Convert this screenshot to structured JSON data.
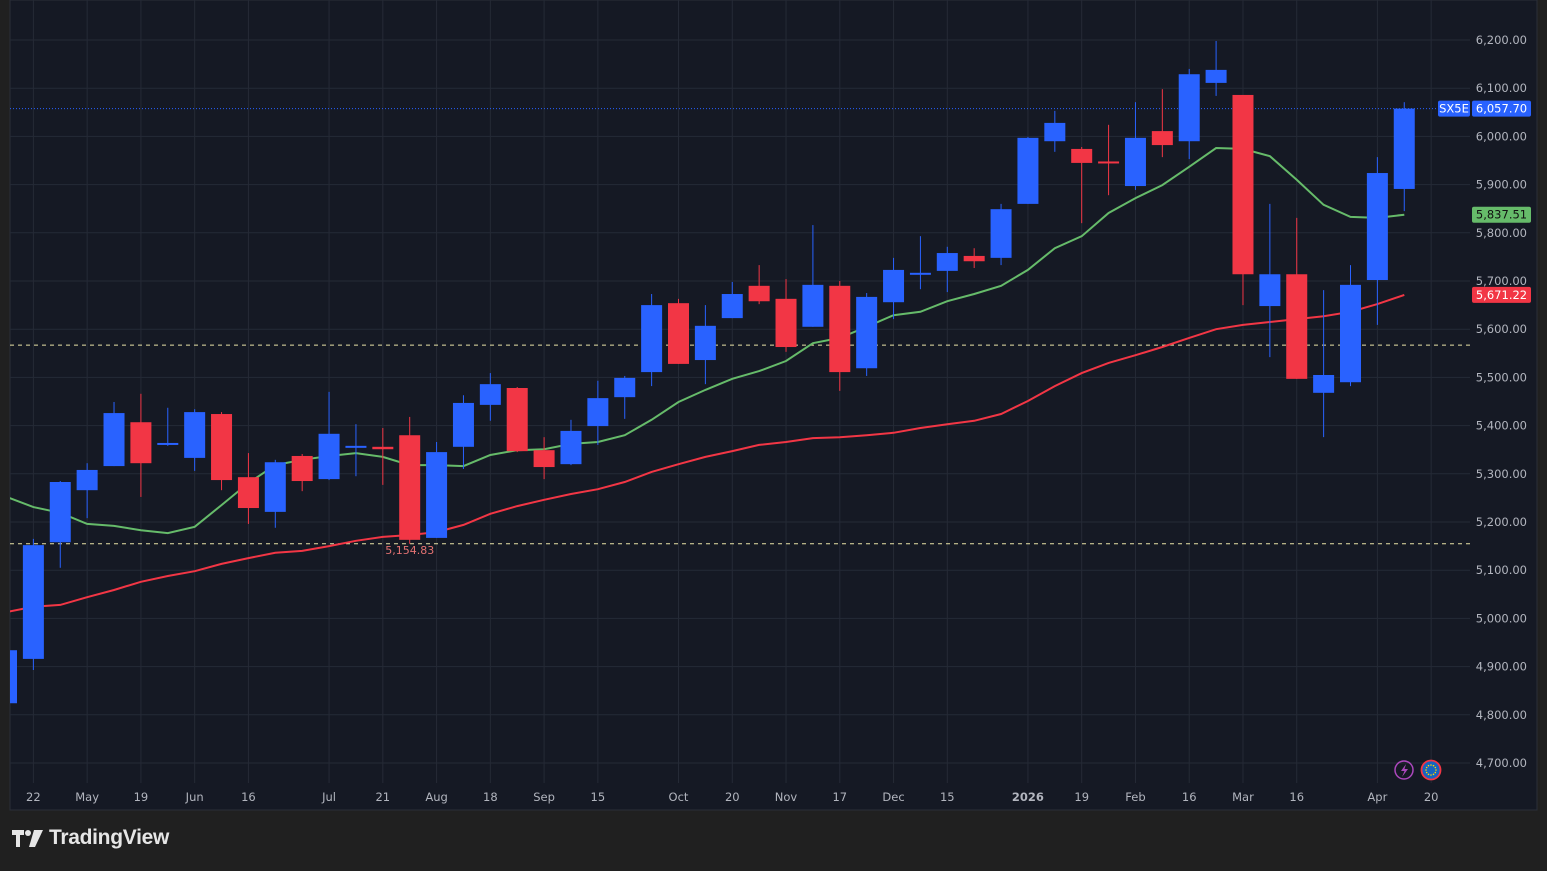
{
  "brand": {
    "name": "TradingView"
  },
  "colors": {
    "up": "#2962ff",
    "down": "#f23645",
    "ma_fast": "#66bb6a",
    "ma_slow": "#f23645",
    "grid": "#252a36",
    "background": "#151924",
    "text": "#b2b5be",
    "hline": "#e9e3a6"
  },
  "chart_data": {
    "type": "candlestick",
    "symbol": "SX5E",
    "interval": "weekly",
    "ylim": [
      4650,
      6250
    ],
    "y_ticks": [
      4700,
      4800,
      4900,
      5000,
      5100,
      5200,
      5300,
      5400,
      5500,
      5600,
      5700,
      5800,
      5900,
      6000,
      6100,
      6200
    ],
    "y_tick_labels": [
      "4,700.00",
      "4,800.00",
      "4,900.00",
      "5,000.00",
      "5,100.00",
      "5,200.00",
      "5,300.00",
      "5,400.00",
      "5,500.00",
      "5,600.00",
      "5,700.00",
      "5,800.00",
      "5,900.00",
      "6,000.00",
      "6,100.00",
      "6,200.00"
    ],
    "x_ticks": [
      {
        "index": 1,
        "label": "22"
      },
      {
        "index": 3,
        "label": "May"
      },
      {
        "index": 5,
        "label": "19"
      },
      {
        "index": 7,
        "label": "Jun"
      },
      {
        "index": 9,
        "label": "16"
      },
      {
        "index": 12,
        "label": "Jul"
      },
      {
        "index": 14,
        "label": "21"
      },
      {
        "index": 16,
        "label": "Aug"
      },
      {
        "index": 18,
        "label": "18"
      },
      {
        "index": 20,
        "label": "Sep"
      },
      {
        "index": 22,
        "label": "15"
      },
      {
        "index": 25,
        "label": "Oct"
      },
      {
        "index": 27,
        "label": "20"
      },
      {
        "index": 29,
        "label": "Nov"
      },
      {
        "index": 31,
        "label": "17"
      },
      {
        "index": 33,
        "label": "Dec"
      },
      {
        "index": 35,
        "label": "15"
      },
      {
        "index": 38,
        "label": "2026"
      },
      {
        "index": 40,
        "label": "19"
      },
      {
        "index": 42,
        "label": "Feb"
      },
      {
        "index": 44,
        "label": "16"
      },
      {
        "index": 46,
        "label": "Mar"
      },
      {
        "index": 48,
        "label": "16"
      },
      {
        "index": 51,
        "label": "Apr"
      },
      {
        "index": 53,
        "label": "20"
      }
    ],
    "ohlc": [
      [
        4824,
        4934,
        4824,
        4934
      ],
      [
        4916,
        5165,
        4893,
        5152
      ],
      [
        5158,
        5285,
        5105,
        5283
      ],
      [
        5266,
        5322,
        5208,
        5308
      ],
      [
        5316,
        5449,
        5316,
        5426
      ],
      [
        5407,
        5466,
        5252,
        5322
      ],
      [
        5362,
        5437,
        5358,
        5364
      ],
      [
        5333,
        5434,
        5306,
        5428
      ],
      [
        5424,
        5428,
        5266,
        5287
      ],
      [
        5293,
        5343,
        5196,
        5229
      ],
      [
        5221,
        5329,
        5188,
        5324
      ],
      [
        5337,
        5341,
        5264,
        5285
      ],
      [
        5289,
        5470,
        5287,
        5383
      ],
      [
        5357,
        5403,
        5295,
        5358
      ],
      [
        5356,
        5395,
        5277,
        5351
      ],
      [
        5380,
        5418,
        5154.83,
        5163
      ],
      [
        5167,
        5366,
        5167,
        5345
      ],
      [
        5356,
        5463,
        5310,
        5447
      ],
      [
        5443,
        5509,
        5410,
        5486
      ],
      [
        5478,
        5480,
        5345,
        5347
      ],
      [
        5349,
        5376,
        5289,
        5314
      ],
      [
        5320,
        5412,
        5318,
        5389
      ],
      [
        5399,
        5493,
        5360,
        5457
      ],
      [
        5459,
        5503,
        5414,
        5499
      ],
      [
        5511,
        5673,
        5482,
        5650
      ],
      [
        5654,
        5663,
        5528,
        5528
      ],
      [
        5536,
        5650,
        5486,
        5607
      ],
      [
        5623,
        5698,
        5623,
        5673
      ],
      [
        5690,
        5733,
        5652,
        5658
      ],
      [
        5663,
        5704,
        5553,
        5563
      ],
      [
        5605,
        5816,
        5605,
        5692
      ],
      [
        5690,
        5700,
        5472,
        5511
      ],
      [
        5519,
        5675,
        5503,
        5667
      ],
      [
        5656,
        5748,
        5621,
        5723
      ],
      [
        5716,
        5793,
        5683,
        5717
      ],
      [
        5721,
        5771,
        5677,
        5758
      ],
      [
        5752,
        5768,
        5727,
        5741
      ],
      [
        5748,
        5860,
        5733,
        5849
      ],
      [
        5860,
        5999,
        5860,
        5997
      ],
      [
        5990,
        6053,
        5968,
        6028
      ],
      [
        5974,
        5978,
        5820,
        5945
      ],
      [
        5948,
        6024,
        5878,
        5947
      ],
      [
        5897,
        6071,
        5889,
        5997
      ],
      [
        6011,
        6098,
        5957,
        5982
      ],
      [
        5990,
        6140,
        5953,
        6129
      ],
      [
        6111,
        6198,
        6084,
        6138
      ],
      [
        6086,
        6086,
        5650,
        5714
      ],
      [
        5648,
        5860,
        5542,
        5714
      ],
      [
        5714,
        5831,
        5497,
        5497
      ],
      [
        5468,
        5681,
        5376,
        5505
      ],
      [
        5490,
        5733,
        5482,
        5692
      ],
      [
        5702,
        5957,
        5609,
        5924
      ],
      [
        5891,
        6071,
        5845,
        6057.7
      ]
    ],
    "series": [
      {
        "name": "MA fast",
        "color": "#66bb6a",
        "last_label": "5,837.51",
        "values": [
          5252,
          5231,
          5219,
          5196,
          5192,
          5183,
          5177,
          5190,
          5235,
          5281,
          5318,
          5329,
          5337,
          5343,
          5335,
          5318,
          5318,
          5316,
          5339,
          5349,
          5351,
          5362,
          5366,
          5380,
          5412,
          5449,
          5474,
          5497,
          5513,
          5534,
          5571,
          5582,
          5605,
          5629,
          5636,
          5658,
          5673,
          5690,
          5723,
          5768,
          5793,
          5841,
          5872,
          5899,
          5937,
          5976,
          5974,
          5959,
          5910,
          5858,
          5833,
          5831,
          5837.51
        ]
      },
      {
        "name": "MA slow",
        "color": "#f23645",
        "last_label": "5,671.22",
        "values": [
          5013,
          5024,
          5028,
          5044,
          5059,
          5076,
          5088,
          5098,
          5113,
          5125,
          5136,
          5140,
          5150,
          5161,
          5169,
          5173,
          5179,
          5194,
          5217,
          5233,
          5246,
          5258,
          5268,
          5283,
          5304,
          5320,
          5335,
          5347,
          5360,
          5366,
          5374,
          5376,
          5380,
          5385,
          5395,
          5403,
          5410,
          5424,
          5451,
          5482,
          5509,
          5530,
          5546,
          5563,
          5582,
          5600,
          5609,
          5615,
          5621,
          5627,
          5636,
          5652,
          5671.22
        ]
      }
    ],
    "last_price": 6057.7,
    "last_price_label": "6,057.70",
    "symbol_label": "SX5E",
    "horizontal_lines": [
      5567,
      5154.83
    ],
    "low_marker": {
      "index": 15,
      "value": 5154.83,
      "label": "5,154.83"
    }
  }
}
